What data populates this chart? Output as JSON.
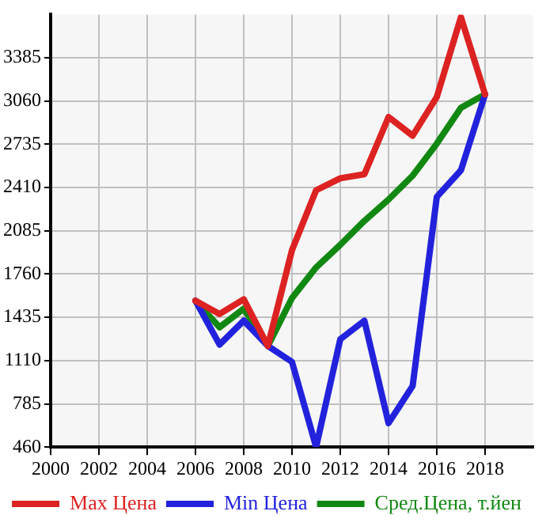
{
  "chart_data": {
    "type": "line",
    "x": [
      2006,
      2007,
      2008,
      2009,
      2010,
      2011,
      2012,
      2013,
      2014,
      2015,
      2016,
      2017,
      2018
    ],
    "series": [
      {
        "name": "Max Цена",
        "color": "#dd2222",
        "values": [
          1560,
          1460,
          1570,
          1220,
          1940,
          2390,
          2480,
          2510,
          2940,
          2800,
          3090,
          3690,
          3110
        ]
      },
      {
        "name": "Min Цена",
        "color": "#2222dd",
        "values": [
          1560,
          1230,
          1410,
          1220,
          1100,
          460,
          1270,
          1410,
          640,
          920,
          2340,
          2540,
          3110
        ]
      },
      {
        "name": "Сред.Цена, т.йен",
        "color": "#118811",
        "values": [
          1560,
          1360,
          1500,
          1220,
          1580,
          1810,
          1980,
          2160,
          2320,
          2500,
          2740,
          3010,
          3110
        ]
      }
    ],
    "xlim": [
      2000,
      2020
    ],
    "xticks": [
      2000,
      2002,
      2004,
      2006,
      2008,
      2010,
      2012,
      2014,
      2016,
      2018
    ],
    "ylim": [
      460,
      3710
    ],
    "yticks": [
      460,
      785,
      1110,
      1435,
      1760,
      2085,
      2410,
      2735,
      3060,
      3385
    ],
    "grid": true,
    "legend": "bottom",
    "marker": "none",
    "line_style": "solid"
  }
}
